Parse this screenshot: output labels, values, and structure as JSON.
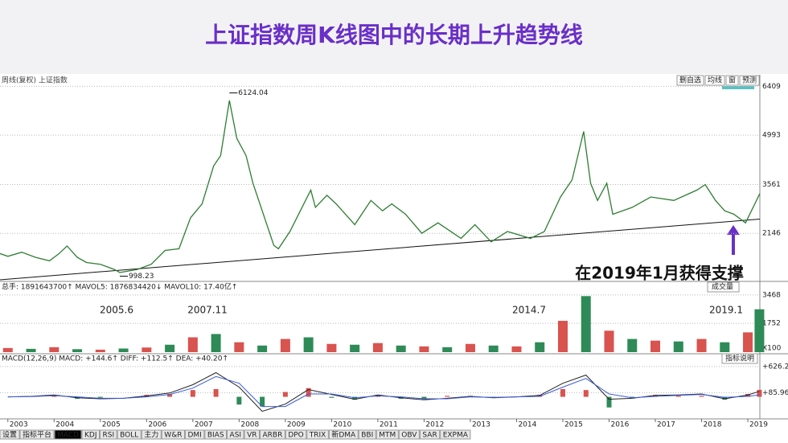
{
  "title": "上证指数周K线图中的长期上升趋势线",
  "toolbar": {
    "label": "周线(复权) 上证指数",
    "buttons": [
      "删自选",
      "均线",
      "窗",
      "预测"
    ]
  },
  "tabs": [
    "设置",
    "指标平台",
    "MACD",
    "KDJ",
    "RSI",
    "BOLL",
    "主力",
    "W&R",
    "DMI",
    "BIAS",
    "ASI",
    "VR",
    "ARBR",
    "DPO",
    "TRIX",
    "新DMA",
    "BBI",
    "MTM",
    "OBV",
    "SAR",
    "EXPMA"
  ],
  "chart_data": [
    {
      "type": "line",
      "color": "#2e7d32",
      "x": [
        2002.83,
        2003.0,
        2003.3,
        2003.6,
        2003.9,
        2004.1,
        2004.28,
        2004.5,
        2004.7,
        2005.0,
        2005.3,
        2005.42,
        2005.8,
        2006.1,
        2006.4,
        2006.7,
        2006.95,
        2007.2,
        2007.45,
        2007.6,
        2007.79,
        2007.95,
        2008.15,
        2008.3,
        2008.5,
        2008.75,
        2008.85,
        2009.1,
        2009.55,
        2009.65,
        2009.9,
        2010.1,
        2010.5,
        2010.85,
        2011.1,
        2011.3,
        2011.6,
        2011.95,
        2012.3,
        2012.8,
        2013.1,
        2013.45,
        2013.8,
        2014.3,
        2014.6,
        2014.95,
        2015.2,
        2015.45,
        2015.6,
        2015.75,
        2015.95,
        2016.08,
        2016.5,
        2016.9,
        2017.4,
        2017.9,
        2018.08,
        2018.3,
        2018.5,
        2018.7,
        2018.95,
        2019.15,
        2019.26
      ],
      "values": [
        1560,
        1480,
        1600,
        1450,
        1350,
        1550,
        1780,
        1450,
        1300,
        1250,
        1100,
        1010,
        1100,
        1250,
        1650,
        1700,
        2600,
        3000,
        4100,
        4400,
        6000,
        4900,
        4400,
        3600,
        2800,
        1800,
        1700,
        2200,
        3400,
        2900,
        3250,
        3000,
        2400,
        3100,
        2800,
        3000,
        2700,
        2150,
        2450,
        2000,
        2400,
        1900,
        2200,
        2000,
        2200,
        3200,
        3700,
        5100,
        3600,
        3100,
        3600,
        2700,
        2900,
        3200,
        3100,
        3400,
        3560,
        3100,
        2800,
        2700,
        2450,
        3000,
        3300
      ],
      "xlim": [
        2002.83,
        2019.26
      ],
      "xticks": [
        2003,
        2004,
        2005,
        2006,
        2007,
        2008,
        2009,
        2010,
        2011,
        2012,
        2013,
        2014,
        2015,
        2016,
        2017,
        2018,
        2019
      ],
      "ylim": [
        800,
        6650
      ],
      "yticks": [
        2146,
        3561,
        4993,
        6409
      ],
      "grid": true,
      "annotations": [
        {
          "x": 2007.79,
          "value": 6124.04
        },
        {
          "x": 2005.42,
          "value": 998.23
        }
      ],
      "trendline": {
        "x": [
          2002.83,
          2019.26
        ],
        "values": [
          800,
          2560
        ]
      },
      "callout": "在2019年1月获得支撑"
    },
    {
      "type": "bar",
      "header": "总手: 1891643700↑ MAVOL5: 1876834420↓ MAVOL10: 17.40亿↑",
      "button": "成交量",
      "unit_label": "X100",
      "x": [
        2003,
        2003.5,
        2004,
        2004.5,
        2005,
        2005.5,
        2006,
        2006.5,
        2007,
        2007.5,
        2008,
        2008.5,
        2009,
        2009.5,
        2010,
        2010.5,
        2011,
        2011.5,
        2012,
        2012.5,
        2013,
        2013.5,
        2014,
        2014.5,
        2015,
        2015.5,
        2016,
        2016.5,
        2017,
        2017.5,
        2018,
        2018.5,
        2019,
        2019.25
      ],
      "values": [
        250,
        200,
        300,
        180,
        150,
        220,
        280,
        450,
        900,
        1100,
        600,
        400,
        800,
        900,
        500,
        450,
        550,
        400,
        350,
        300,
        500,
        400,
        350,
        600,
        1900,
        3400,
        1300,
        800,
        700,
        650,
        800,
        600,
        1200,
        2600
      ],
      "colors": [
        "#d9534f",
        "#2e8b57"
      ],
      "ylim": [
        0,
        3560
      ],
      "yticks": [
        1752,
        3468
      ],
      "grid": true,
      "annotations": [
        "2005.6",
        "2007.11",
        "2014.7",
        "2019.1"
      ]
    },
    {
      "type": "macd",
      "header": "MACD(12,26,9) MACD: +144.6↑ DIFF: +112.5↑ DEA: +40.20↑",
      "button": "指标说明",
      "x": [
        2003,
        2003.5,
        2004,
        2004.5,
        2005,
        2005.5,
        2006,
        2006.5,
        2007,
        2007.5,
        2008,
        2008.5,
        2009,
        2009.5,
        2010,
        2010.5,
        2011,
        2011.5,
        2012,
        2012.5,
        2013,
        2013.5,
        2014,
        2014.5,
        2015,
        2015.5,
        2016,
        2016.5,
        2017,
        2017.5,
        2018,
        2018.5,
        2019,
        2019.25
      ],
      "series": [
        {
          "color": "#222222",
          "values": [
            0,
            10,
            40,
            -20,
            -40,
            -30,
            20,
            80,
            250,
            500,
            200,
            -300,
            -150,
            150,
            50,
            -50,
            40,
            -20,
            -60,
            -30,
            10,
            -20,
            0,
            30,
            280,
            450,
            -50,
            -30,
            30,
            40,
            60,
            -40,
            40,
            112.5
          ]
        },
        {
          "color": "#3b5bdb",
          "values": [
            0,
            5,
            25,
            0,
            -30,
            -30,
            0,
            50,
            180,
            420,
            280,
            -200,
            -200,
            60,
            60,
            -20,
            20,
            0,
            -40,
            -40,
            0,
            -10,
            0,
            10,
            200,
            380,
            60,
            -20,
            10,
            30,
            50,
            -10,
            10,
            40.2
          ]
        }
      ],
      "histogram": {
        "colors": [
          "#d9534f",
          "#2e8b57"
        ],
        "values": [
          0,
          10,
          30,
          -40,
          -20,
          0,
          40,
          60,
          140,
          160,
          -160,
          -200,
          100,
          180,
          -20,
          -60,
          40,
          -40,
          -40,
          20,
          20,
          -20,
          0,
          40,
          160,
          140,
          -220,
          -20,
          40,
          20,
          20,
          -60,
          60,
          144.6
        ]
      },
      "ylim": [
        -440,
        675
      ],
      "yticks": [
        {
          "value": 85.96,
          "label": "+85.96"
        },
        {
          "value": 626.2,
          "label": "+626.2"
        }
      ],
      "grid": true
    }
  ]
}
